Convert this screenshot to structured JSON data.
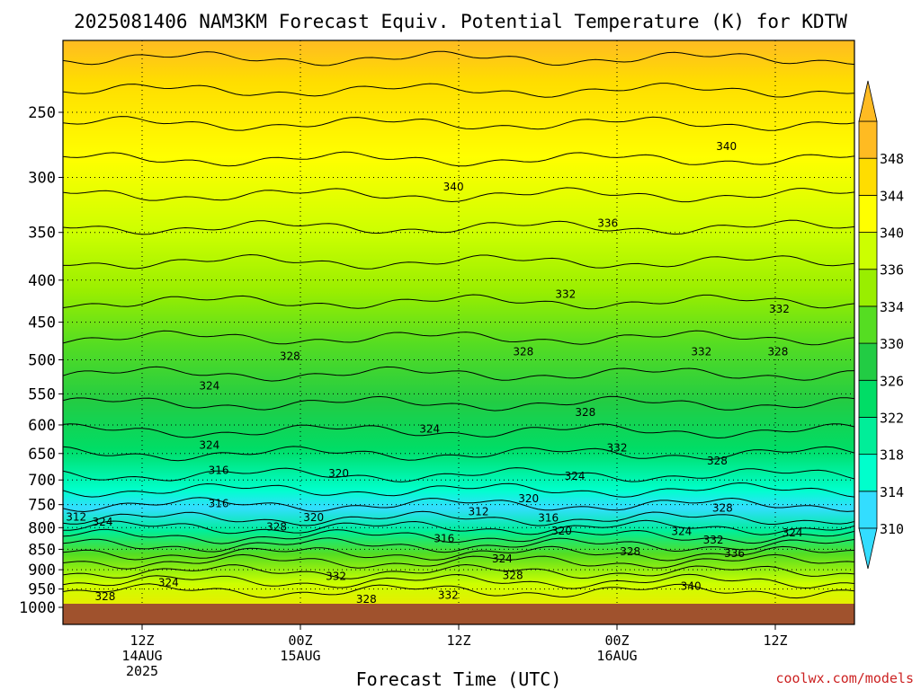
{
  "title": "2025081406 NAM3KM Forecast Equiv. Potential Temperature (K) for KDTW",
  "credit": "coolwx.com/models",
  "colors": {
    "ground": "#a0522d",
    "scale": [
      "#33ddff",
      "#00ffcc",
      "#00ee99",
      "#00dd66",
      "#22cc44",
      "#55dd22",
      "#99ee00",
      "#ccff00",
      "#ffff00",
      "#ffdd00",
      "#ffbb22"
    ]
  },
  "chart_data": {
    "type": "heatmap",
    "title": "2025081406 NAM3KM Forecast Equiv. Potential Temperature (K) for KDTW",
    "xlabel": "Forecast Time (UTC)",
    "ylabel": "",
    "y_scale": "log",
    "y_reversed": true,
    "x_range_hours": [
      0,
      60
    ],
    "y_ticks": [
      250,
      300,
      350,
      400,
      450,
      500,
      550,
      600,
      650,
      700,
      750,
      800,
      850,
      900,
      950,
      1000
    ],
    "x_ticks": [
      {
        "hour": 6,
        "l1": "12Z",
        "l2": "14AUG",
        "l3": "2025"
      },
      {
        "hour": 18,
        "l1": "00Z",
        "l2": "15AUG",
        "l3": ""
      },
      {
        "hour": 30,
        "l1": "12Z",
        "l2": "",
        "l3": ""
      },
      {
        "hour": 42,
        "l1": "00Z",
        "l2": "16AUG",
        "l3": ""
      },
      {
        "hour": 54,
        "l1": "12Z",
        "l2": "",
        "l3": ""
      }
    ],
    "colorbar": {
      "levels": [
        310,
        314,
        318,
        322,
        326,
        330,
        334,
        336,
        340,
        344,
        348
      ],
      "extend": "both"
    },
    "contour_labels": [
      {
        "text": "340",
        "hour": 50.3,
        "p": 275
      },
      {
        "text": "340",
        "hour": 29.6,
        "p": 308
      },
      {
        "text": "336",
        "hour": 41.3,
        "p": 341
      },
      {
        "text": "332",
        "hour": 38.1,
        "p": 416
      },
      {
        "text": "332",
        "hour": 54.3,
        "p": 434
      },
      {
        "text": "328",
        "hour": 17.2,
        "p": 495
      },
      {
        "text": "328",
        "hour": 34.9,
        "p": 489
      },
      {
        "text": "332",
        "hour": 48.4,
        "p": 489
      },
      {
        "text": "328",
        "hour": 54.2,
        "p": 489
      },
      {
        "text": "324",
        "hour": 11.1,
        "p": 538
      },
      {
        "text": "328",
        "hour": 39.6,
        "p": 579
      },
      {
        "text": "324",
        "hour": 27.8,
        "p": 607
      },
      {
        "text": "324",
        "hour": 11.1,
        "p": 635
      },
      {
        "text": "332",
        "hour": 42.0,
        "p": 640
      },
      {
        "text": "328",
        "hour": 49.6,
        "p": 664
      },
      {
        "text": "316",
        "hour": 11.8,
        "p": 681
      },
      {
        "text": "320",
        "hour": 20.9,
        "p": 687
      },
      {
        "text": "324",
        "hour": 38.8,
        "p": 693
      },
      {
        "text": "320",
        "hour": 35.3,
        "p": 738
      },
      {
        "text": "316",
        "hour": 11.8,
        "p": 748
      },
      {
        "text": "328",
        "hour": 50.0,
        "p": 757
      },
      {
        "text": "312",
        "hour": 31.5,
        "p": 765
      },
      {
        "text": "312",
        "hour": 1.0,
        "p": 777
      },
      {
        "text": "320",
        "hour": 19.0,
        "p": 778
      },
      {
        "text": "316",
        "hour": 36.8,
        "p": 779
      },
      {
        "text": "324",
        "hour": 3.0,
        "p": 787
      },
      {
        "text": "328",
        "hour": 16.2,
        "p": 798
      },
      {
        "text": "320",
        "hour": 37.8,
        "p": 807
      },
      {
        "text": "324",
        "hour": 46.9,
        "p": 808
      },
      {
        "text": "324",
        "hour": 55.3,
        "p": 812
      },
      {
        "text": "316",
        "hour": 28.9,
        "p": 825
      },
      {
        "text": "332",
        "hour": 49.3,
        "p": 828
      },
      {
        "text": "328",
        "hour": 43.0,
        "p": 856
      },
      {
        "text": "336",
        "hour": 50.9,
        "p": 860
      },
      {
        "text": "324",
        "hour": 33.3,
        "p": 873
      },
      {
        "text": "328",
        "hour": 34.1,
        "p": 915
      },
      {
        "text": "332",
        "hour": 20.7,
        "p": 917
      },
      {
        "text": "324",
        "hour": 8.0,
        "p": 933
      },
      {
        "text": "340",
        "hour": 47.6,
        "p": 942
      },
      {
        "text": "332",
        "hour": 29.2,
        "p": 967
      },
      {
        "text": "328",
        "hour": 3.2,
        "p": 970
      },
      {
        "text": "328",
        "hour": 23.0,
        "p": 978
      }
    ]
  }
}
